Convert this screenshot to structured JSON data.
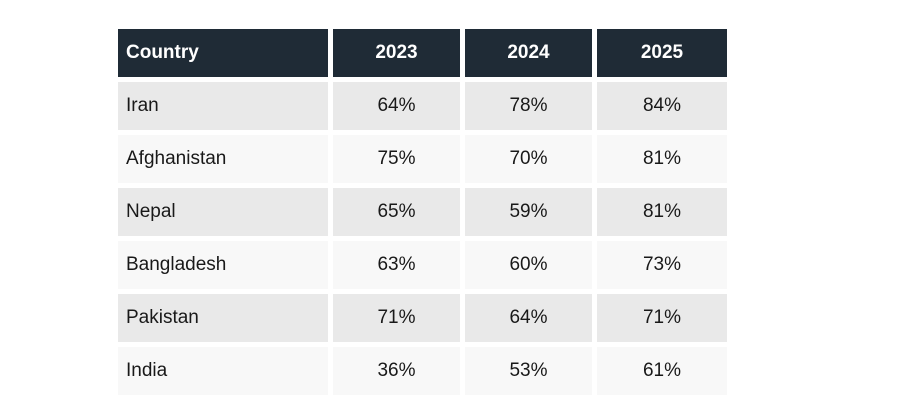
{
  "chart_data": {
    "type": "table",
    "title": "",
    "columns": [
      "Country",
      "2023",
      "2024",
      "2025"
    ],
    "rows": [
      [
        "Iran",
        "64%",
        "78%",
        "84%"
      ],
      [
        "Afghanistan",
        "75%",
        "70%",
        "81%"
      ],
      [
        "Nepal",
        "65%",
        "59%",
        "81%"
      ],
      [
        "Bangladesh",
        "63%",
        "60%",
        "73%"
      ],
      [
        "Pakistan",
        "71%",
        "64%",
        "71%"
      ],
      [
        "India",
        "36%",
        "53%",
        "61%"
      ]
    ],
    "layout": {
      "header_alignment": "center",
      "first_column_alignment": "left",
      "value_alignment": "center",
      "alternating_rows": true
    }
  },
  "colors": {
    "page_bg": "#ffffff",
    "header_bg": "#1f2b36",
    "header_text": "#ffffff",
    "row_odd_bg": "#e9e9e9",
    "row_even_bg": "#f8f8f8",
    "body_text": "#191919"
  }
}
